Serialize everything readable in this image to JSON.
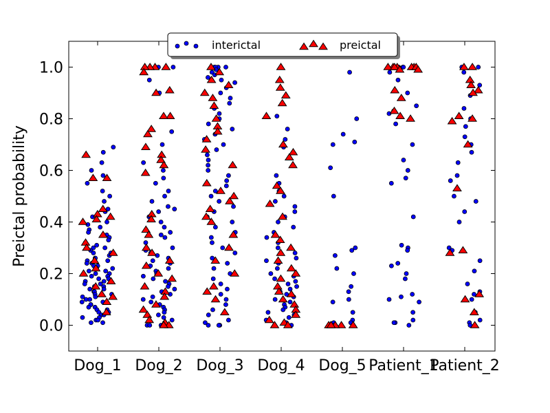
{
  "chart_data": {
    "type": "scatter",
    "title": "",
    "xlabel": "",
    "ylabel": "Preictal probability",
    "ylim": [
      -0.1,
      1.1
    ],
    "yticks": [
      "0.0",
      "0.2",
      "0.4",
      "0.6",
      "0.8",
      "1.0"
    ],
    "categories": [
      "Dog_1",
      "Dog_2",
      "Dog_3",
      "Dog_4",
      "Dog_5",
      "Patient_1",
      "Patient_2"
    ],
    "grid": false,
    "legend_position": "top-center",
    "colors": {
      "interictal": "#0000ff",
      "preictal": "#ff0000",
      "edge": "#000000"
    },
    "series": [
      {
        "name": "interictal",
        "marker": "circle",
        "points": [
          {
            "category": "Dog_1",
            "values": [
              0.52,
              0.6,
              0.63,
              0.69,
              0.67,
              0.58,
              0.55,
              0.5,
              0.48,
              0.45,
              0.44,
              0.42,
              0.4,
              0.39,
              0.38,
              0.37,
              0.36,
              0.35,
              0.34,
              0.33,
              0.32,
              0.31,
              0.3,
              0.3,
              0.29,
              0.28,
              0.28,
              0.27,
              0.26,
              0.26,
              0.25,
              0.25,
              0.24,
              0.24,
              0.23,
              0.23,
              0.22,
              0.22,
              0.21,
              0.21,
              0.2,
              0.2,
              0.19,
              0.19,
              0.18,
              0.18,
              0.17,
              0.17,
              0.16,
              0.16,
              0.15,
              0.15,
              0.14,
              0.14,
              0.13,
              0.13,
              0.12,
              0.12,
              0.11,
              0.11,
              0.1,
              0.1,
              0.09,
              0.09,
              0.08,
              0.08,
              0.07,
              0.07,
              0.06,
              0.06,
              0.05,
              0.05,
              0.04,
              0.04,
              0.03,
              0.03,
              0.02,
              0.02,
              0.01,
              0.01
            ]
          },
          {
            "category": "Dog_2",
            "values": [
              1.0,
              1.0,
              0.95,
              0.9,
              0.75,
              0.7,
              0.63,
              0.6,
              0.57,
              0.55,
              0.52,
              0.5,
              0.48,
              0.46,
              0.45,
              0.44,
              0.42,
              0.4,
              0.38,
              0.36,
              0.35,
              0.34,
              0.32,
              0.3,
              0.29,
              0.28,
              0.27,
              0.26,
              0.25,
              0.24,
              0.23,
              0.22,
              0.21,
              0.2,
              0.19,
              0.18,
              0.17,
              0.16,
              0.15,
              0.14,
              0.13,
              0.12,
              0.11,
              0.1,
              0.09,
              0.08,
              0.07,
              0.06,
              0.05,
              0.04,
              0.03,
              0.02,
              0.01,
              0.0,
              0.0,
              0.0,
              0.0
            ]
          },
          {
            "category": "Dog_3",
            "values": [
              1.0,
              1.0,
              1.0,
              1.0,
              0.99,
              0.98,
              0.97,
              0.96,
              0.95,
              0.94,
              0.92,
              0.9,
              0.88,
              0.86,
              0.84,
              0.82,
              0.8,
              0.78,
              0.76,
              0.74,
              0.72,
              0.7,
              0.68,
              0.66,
              0.64,
              0.62,
              0.6,
              0.58,
              0.56,
              0.54,
              0.52,
              0.5,
              0.48,
              0.46,
              0.44,
              0.42,
              0.4,
              0.38,
              0.36,
              0.34,
              0.32,
              0.3,
              0.28,
              0.26,
              0.24,
              0.22,
              0.2,
              0.18,
              0.16,
              0.14,
              0.12,
              0.1,
              0.08,
              0.06,
              0.04,
              0.02,
              0.01,
              0.0,
              0.0,
              0.0
            ]
          },
          {
            "category": "Dog_4",
            "values": [
              0.81,
              0.76,
              0.72,
              0.69,
              0.58,
              0.55,
              0.52,
              0.5,
              0.48,
              0.46,
              0.44,
              0.42,
              0.4,
              0.38,
              0.36,
              0.34,
              0.32,
              0.3,
              0.28,
              0.26,
              0.25,
              0.24,
              0.22,
              0.2,
              0.19,
              0.18,
              0.17,
              0.16,
              0.15,
              0.14,
              0.13,
              0.12,
              0.11,
              0.1,
              0.09,
              0.08,
              0.07,
              0.06,
              0.05,
              0.04,
              0.03,
              0.02,
              0.01,
              0.0,
              0.0
            ]
          },
          {
            "category": "Dog_5",
            "values": [
              0.98,
              0.8,
              0.74,
              0.71,
              0.7,
              0.61,
              0.5,
              0.3,
              0.29,
              0.27,
              0.22,
              0.2,
              0.15,
              0.13,
              0.1,
              0.09,
              0.05,
              0.02,
              0.01,
              0.01,
              0.0,
              0.0,
              0.0
            ]
          },
          {
            "category": "Patient_1",
            "values": [
              1.0,
              1.0,
              1.0,
              0.98,
              0.95,
              0.9,
              0.85,
              0.83,
              0.82,
              0.78,
              0.7,
              0.64,
              0.6,
              0.57,
              0.55,
              0.42,
              0.31,
              0.3,
              0.29,
              0.24,
              0.23,
              0.2,
              0.18,
              0.12,
              0.11,
              0.1,
              0.09,
              0.05,
              0.02,
              0.01,
              0.01,
              0.0
            ]
          },
          {
            "category": "Patient_2",
            "values": [
              1.0,
              1.0,
              0.98,
              0.93,
              0.89,
              0.84,
              0.8,
              0.77,
              0.73,
              0.7,
              0.67,
              0.63,
              0.58,
              0.56,
              0.5,
              0.48,
              0.44,
              0.4,
              0.3,
              0.29,
              0.25,
              0.21,
              0.16,
              0.13,
              0.12,
              0.1,
              0.05,
              0.02,
              0.01,
              0.0
            ]
          }
        ]
      },
      {
        "name": "preictal",
        "marker": "triangle",
        "points": [
          {
            "category": "Dog_1",
            "values": [
              0.66,
              0.57,
              0.57,
              0.45,
              0.43,
              0.42,
              0.41,
              0.4,
              0.35,
              0.32,
              0.3,
              0.28,
              0.25,
              0.22,
              0.2,
              0.17,
              0.15,
              0.12,
              0.11,
              0.09,
              0.05
            ]
          },
          {
            "category": "Dog_2",
            "values": [
              1.0,
              1.0,
              1.0,
              1.0,
              0.98,
              0.91,
              0.9,
              0.81,
              0.81,
              0.76,
              0.74,
              0.69,
              0.66,
              0.64,
              0.62,
              0.59,
              0.43,
              0.41,
              0.37,
              0.35,
              0.3,
              0.28,
              0.25,
              0.23,
              0.2,
              0.18,
              0.15,
              0.13,
              0.11,
              0.08,
              0.06,
              0.04,
              0.02,
              0.01,
              0.0,
              0.0
            ]
          },
          {
            "category": "Dog_3",
            "values": [
              1.0,
              0.98,
              0.95,
              0.93,
              0.9,
              0.88,
              0.85,
              0.8,
              0.77,
              0.75,
              0.72,
              0.68,
              0.62,
              0.55,
              0.52,
              0.5,
              0.48,
              0.45,
              0.42,
              0.4,
              0.35,
              0.3,
              0.25,
              0.2,
              0.15,
              0.13,
              0.1,
              0.05
            ]
          },
          {
            "category": "Dog_4",
            "values": [
              1.0,
              0.95,
              0.92,
              0.89,
              0.86,
              0.81,
              0.7,
              0.67,
              0.65,
              0.62,
              0.54,
              0.52,
              0.47,
              0.42,
              0.35,
              0.33,
              0.3,
              0.28,
              0.25,
              0.22,
              0.2,
              0.18,
              0.15,
              0.13,
              0.12,
              0.1,
              0.08,
              0.06,
              0.04,
              0.02,
              0.01,
              0.0,
              0.0
            ]
          },
          {
            "category": "Dog_5",
            "values": [
              0.0,
              0.0,
              0.0,
              0.0,
              0.0,
              0.0
            ]
          },
          {
            "category": "Patient_1",
            "values": [
              1.0,
              1.0,
              1.0,
              1.0,
              1.0,
              1.0,
              1.0,
              0.99,
              0.99,
              0.91,
              0.88,
              0.83,
              0.81,
              0.8
            ]
          },
          {
            "category": "Patient_2",
            "values": [
              1.0,
              1.0,
              0.95,
              0.93,
              0.91,
              0.9,
              0.81,
              0.8,
              0.79,
              0.7,
              0.53,
              0.29,
              0.28,
              0.12,
              0.1,
              0.05,
              0.0
            ]
          }
        ]
      }
    ]
  }
}
